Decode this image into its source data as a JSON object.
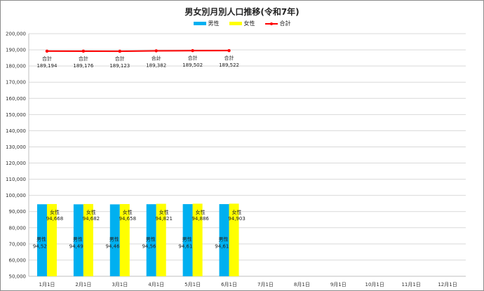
{
  "chart_data": {
    "type": "bar",
    "title": "男女別月別人口推移(令和7年)",
    "categories": [
      "1月1日",
      "2月1日",
      "3月1日",
      "4月1日",
      "5月1日",
      "6月1日",
      "7月1日",
      "8月1日",
      "9月1日",
      "10月1日",
      "11月1日",
      "12月1日"
    ],
    "series": [
      {
        "name": "男性",
        "type": "bar",
        "color": "#00b0f0",
        "values": [
          94526,
          94494,
          94465,
          94561,
          94616,
          94619,
          null,
          null,
          null,
          null,
          null,
          null
        ]
      },
      {
        "name": "女性",
        "type": "bar",
        "color": "#ffff00",
        "values": [
          94668,
          94682,
          94658,
          94821,
          94886,
          94903,
          null,
          null,
          null,
          null,
          null,
          null
        ]
      },
      {
        "name": "合計",
        "type": "line",
        "color": "#ff0000",
        "values": [
          189194,
          189176,
          189123,
          189382,
          189502,
          189522,
          null,
          null,
          null,
          null,
          null,
          null
        ]
      }
    ],
    "ylim": [
      50000,
      200000
    ],
    "ytick_step": 10000,
    "yticks": [
      "50,000",
      "60,000",
      "70,000",
      "80,000",
      "90,000",
      "100,000",
      "110,000",
      "120,000",
      "130,000",
      "140,000",
      "150,000",
      "160,000",
      "170,000",
      "180,000",
      "190,000",
      "200,000"
    ],
    "grid": true,
    "legend_position": "top",
    "data_labels": {
      "male": [
        "94,526",
        "94,494",
        "94,465",
        "94,561",
        "94,616",
        "94,619"
      ],
      "female": [
        "94,668",
        "94,682",
        "94,658",
        "94,821",
        "94,886",
        "94,903"
      ],
      "total": [
        "189,194",
        "189,176",
        "189,123",
        "189,382",
        "189,502",
        "189,522"
      ]
    }
  }
}
